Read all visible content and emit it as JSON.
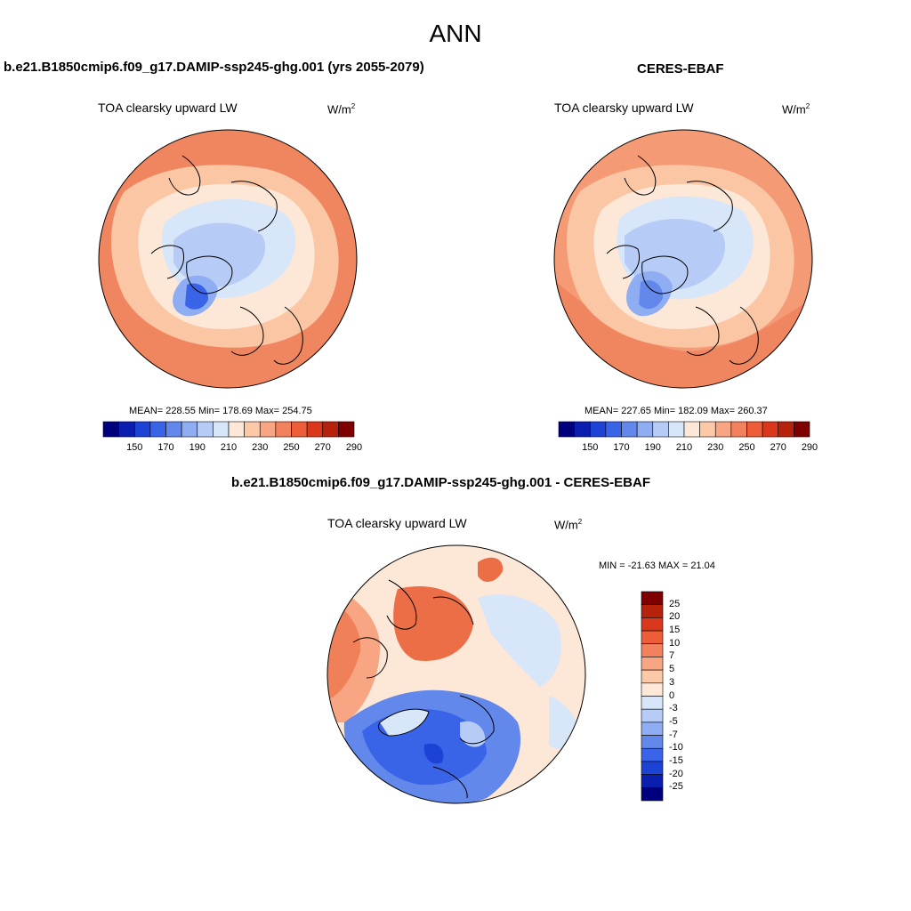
{
  "figure": {
    "title": "ANN"
  },
  "panels": {
    "model": {
      "case_title": "b.e21.B1850cmip6.f09_g17.DAMIP-ssp245-ghg.001 (yrs 2055-2079)",
      "variable_label": "TOA clearsky upward LW",
      "units_base": "W/m",
      "units_exp": "2",
      "stats": "MEAN= 228.55  Min= 178.69  Max= 254.75"
    },
    "obs": {
      "case_title": "CERES-EBAF",
      "variable_label": "TOA clearsky upward LW",
      "units_base": "W/m",
      "units_exp": "2",
      "stats": "MEAN= 227.65  Min= 182.09  Max= 260.37"
    },
    "diff": {
      "case_title": "b.e21.B1850cmip6.f09_g17.DAMIP-ssp245-ghg.001 - CERES-EBAF",
      "variable_label": "TOA clearsky upward LW",
      "units_base": "W/m",
      "units_exp": "2",
      "stats": "MIN = -21.63 MAX =  21.04"
    }
  },
  "colorbars": {
    "field": {
      "colors": [
        "#00007f",
        "#0a1eb0",
        "#1d42d6",
        "#3a64e8",
        "#6388ec",
        "#8fadf2",
        "#b6ccf6",
        "#d8e6fa",
        "#fde7d6",
        "#fbc8a8",
        "#f7a582",
        "#f2825d",
        "#ec5d38",
        "#d9381c",
        "#b5230c",
        "#7f0000"
      ],
      "tick_labels": [
        "150",
        "170",
        "190",
        "210",
        "230",
        "250",
        "270",
        "290"
      ]
    },
    "diff": {
      "colors": [
        "#00007f",
        "#0a1eb0",
        "#1d42d6",
        "#3a64e8",
        "#6388ec",
        "#8fadf2",
        "#b6ccf6",
        "#d8e6fa",
        "#fde7d6",
        "#fbc8a8",
        "#f7a582",
        "#f2825d",
        "#ec5d38",
        "#d9381c",
        "#b5230c",
        "#7f0000"
      ],
      "tick_labels": [
        "25",
        "20",
        "15",
        "10",
        "7",
        "5",
        "3",
        "0",
        "-3",
        "-5",
        "-7",
        "-10",
        "-15",
        "-20",
        "-25"
      ]
    }
  },
  "palette": {
    "land_outline": "#000000",
    "deep_blue": "#2f5fe0",
    "mid_blue": "#7fa4ee",
    "light_blue": "#cfe0fa",
    "peach": "#fde3cf",
    "salmon": "#f7b08c",
    "orange": "#f08058",
    "red_orange": "#ea6a3c"
  }
}
